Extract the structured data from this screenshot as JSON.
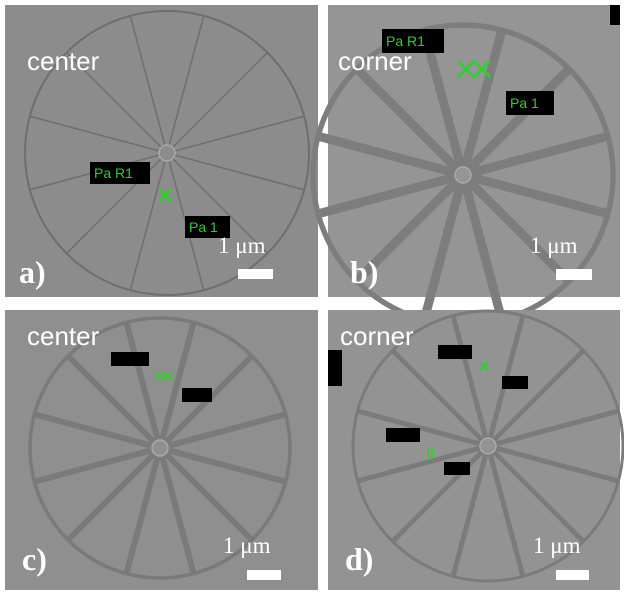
{
  "panels": [
    {
      "label": "a)",
      "view": "center",
      "scale": "1 μm",
      "markers": [
        "Pa R1",
        "Pa 1"
      ]
    },
    {
      "label": "b)",
      "view": "corner",
      "scale": "1 μm",
      "markers": [
        "Pa R1",
        "Pa 1"
      ]
    },
    {
      "label": "c)",
      "view": "center",
      "scale": "1 μm"
    },
    {
      "label": "d)",
      "view": "corner",
      "scale": "1 μm"
    }
  ]
}
